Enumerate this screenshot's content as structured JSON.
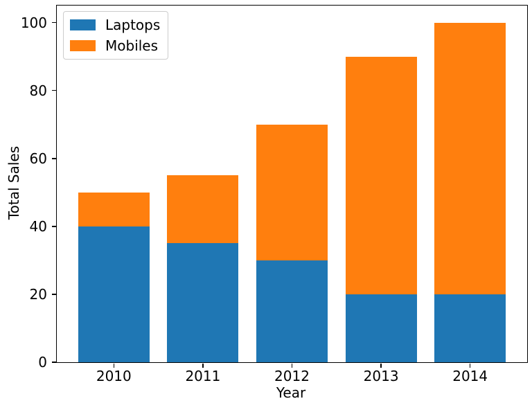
{
  "figure": {
    "background": "#ffffff",
    "axis_color": "#000000",
    "text_color": "#000000",
    "legend_border_color": "#cccccc"
  },
  "chart_data": {
    "type": "bar",
    "stacked": true,
    "title": "",
    "xlabel": "Year",
    "ylabel": "Total Sales",
    "categories": [
      "2010",
      "2011",
      "2012",
      "2013",
      "2014"
    ],
    "series": [
      {
        "name": "Laptops",
        "color": "#1f77b4",
        "values": [
          40,
          35,
          30,
          20,
          20
        ]
      },
      {
        "name": "Mobiles",
        "color": "#ff7f0e",
        "values": [
          10,
          20,
          40,
          70,
          80
        ]
      }
    ],
    "totals": [
      50,
      55,
      70,
      90,
      100
    ],
    "yticks": [
      0,
      20,
      40,
      60,
      80,
      100
    ],
    "ylim": [
      0,
      105
    ],
    "bar_width_fraction": 0.8,
    "grid": false,
    "legend_position": "upper left",
    "legend_entries": [
      "Laptops",
      "Mobiles"
    ]
  }
}
